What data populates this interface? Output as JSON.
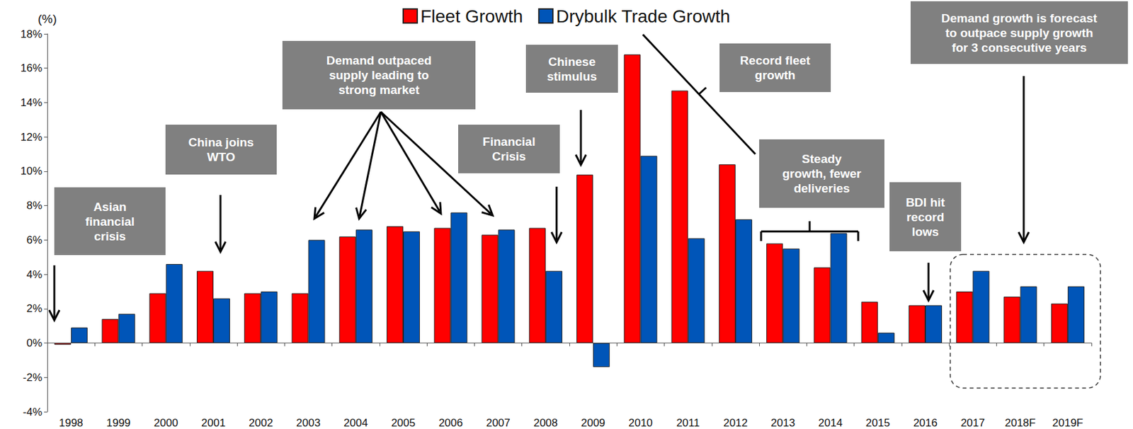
{
  "chart_data": {
    "type": "bar",
    "y_label": "(%)",
    "categories": [
      "1998",
      "1999",
      "2000",
      "2001",
      "2002",
      "2003",
      "2004",
      "2005",
      "2006",
      "2007",
      "2008",
      "2009",
      "2010",
      "2011",
      "2012",
      "2013",
      "2014",
      "2015",
      "2016",
      "2017",
      "2018F",
      "2019F"
    ],
    "series": [
      {
        "name": "Fleet Growth",
        "color": "#ff0000",
        "values": [
          -0.1,
          1.4,
          2.9,
          4.2,
          2.9,
          2.9,
          6.2,
          6.8,
          6.7,
          6.3,
          6.7,
          9.8,
          16.8,
          14.7,
          10.4,
          5.8,
          4.4,
          2.4,
          2.2,
          3.0,
          2.7,
          2.3
        ]
      },
      {
        "name": "Drybulk Trade Growth",
        "color": "#0055b8",
        "values": [
          0.9,
          1.7,
          4.6,
          2.6,
          3.0,
          6.0,
          6.6,
          6.5,
          7.6,
          6.6,
          4.2,
          -1.4,
          10.9,
          6.1,
          7.2,
          5.5,
          6.4,
          0.6,
          2.2,
          4.2,
          3.3,
          3.3
        ]
      }
    ],
    "ylim": [
      -4,
      18
    ],
    "yticks": [
      {
        "value": -4,
        "label": "-4%"
      },
      {
        "value": -2,
        "label": "-2%"
      },
      {
        "value": 0,
        "label": "0%"
      },
      {
        "value": 2,
        "label": "2%"
      },
      {
        "value": 4,
        "label": "4%"
      },
      {
        "value": 6,
        "label": "6%"
      },
      {
        "value": 8,
        "label": "8%"
      },
      {
        "value": 10,
        "label": "10%"
      },
      {
        "value": 12,
        "label": "12%"
      },
      {
        "value": 14,
        "label": "14%"
      },
      {
        "value": 16,
        "label": "16%"
      },
      {
        "value": 18,
        "label": "18%"
      }
    ],
    "grid": false,
    "legend": "top",
    "annotations": [
      "Asian financial crisis",
      "China joins WTO",
      "Demand outpaced supply leading to strong market",
      "Financial Crisis",
      "Chinese stimulus",
      "Record fleet growth",
      "Steady growth, fewer deliveries",
      "BDI hit record lows",
      "Demand growth is forecast to outpace supply growth for 3 consecutive years"
    ]
  }
}
